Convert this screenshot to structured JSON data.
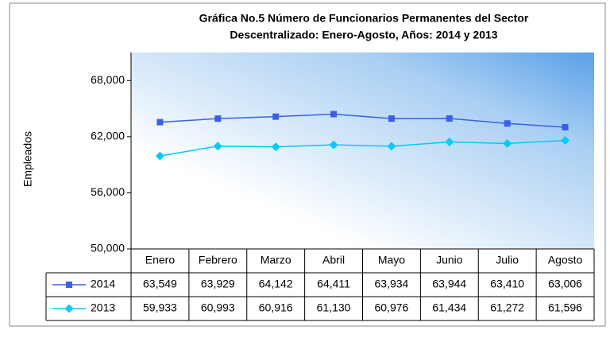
{
  "chart_data": {
    "type": "line",
    "title": [
      "Gráfica No.5 Número de Funcionarios Permanentes del Sector",
      "Descentralizado: Enero-Agosto, Años: 2014 y 2013"
    ],
    "y_label": "Empleados",
    "categories": [
      "Enero",
      "Febrero",
      "Marzo",
      "Abril",
      "Mayo",
      "Junio",
      "Julio",
      "Agosto"
    ],
    "series": [
      {
        "name": "2014",
        "color": "#3a5fe6",
        "marker": "square",
        "values": [
          63549,
          63929,
          64142,
          64411,
          63934,
          63944,
          63410,
          63006
        ],
        "value_labels": [
          "63,549",
          "63,929",
          "64,142",
          "64,411",
          "63,934",
          "63,944",
          "63,410",
          "63,006"
        ]
      },
      {
        "name": "2013",
        "color": "#00ccf5",
        "marker": "diamond",
        "values": [
          59933,
          60993,
          60916,
          61130,
          60976,
          61434,
          61272,
          61596
        ],
        "value_labels": [
          "59,933",
          "60,993",
          "60,916",
          "61,130",
          "60,976",
          "61,434",
          "61,272",
          "61,596"
        ]
      }
    ],
    "ylim": [
      50000,
      71000
    ],
    "yticks": [
      {
        "value": 50000,
        "label": "50,000"
      },
      {
        "value": 56000,
        "label": "56,000"
      },
      {
        "value": 62000,
        "label": "62,000"
      },
      {
        "value": 68000,
        "label": "68,000"
      }
    ],
    "grid": false
  }
}
